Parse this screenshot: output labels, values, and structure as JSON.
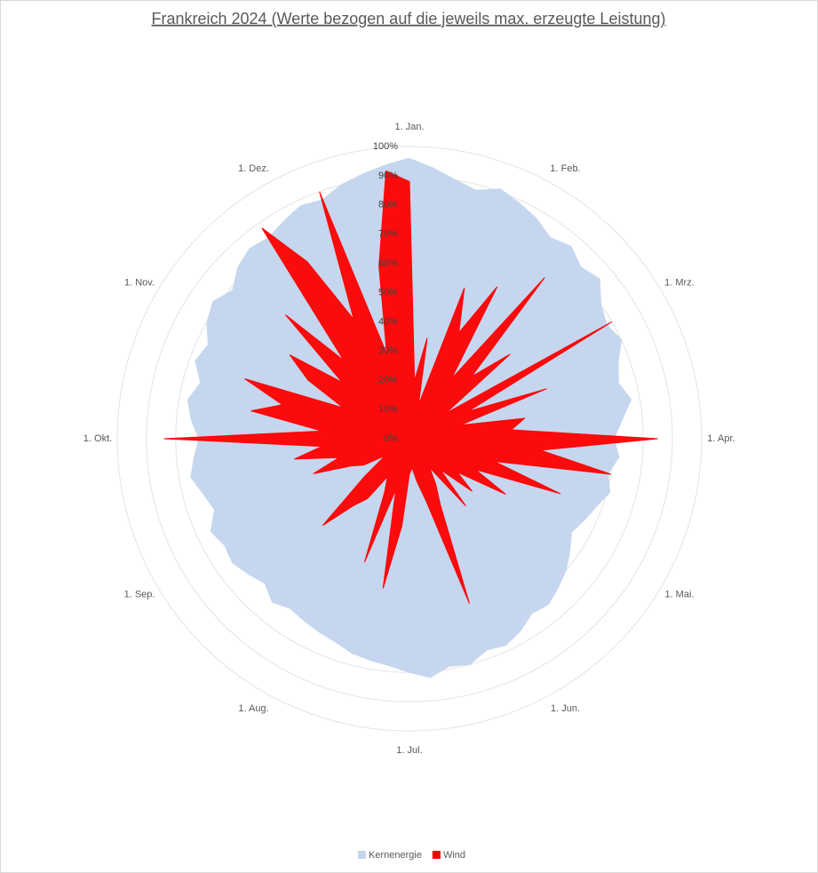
{
  "chart_data": {
    "type": "radar",
    "title": "Frankreich 2024 (Werte bezogen auf die jeweils max. erzeugte Leistung)",
    "categories": [
      "1. Jan.",
      null,
      null,
      null,
      null,
      null,
      "1. Feb.",
      null,
      null,
      null,
      null,
      null,
      "1. Mrz.",
      null,
      null,
      null,
      null,
      null,
      "1. Apr.",
      null,
      null,
      null,
      null,
      null,
      "1. Mai.",
      null,
      null,
      null,
      null,
      null,
      "1. Jun.",
      null,
      null,
      null,
      null,
      null,
      "1. Jul.",
      null,
      null,
      null,
      null,
      null,
      "1. Aug.",
      null,
      null,
      null,
      null,
      null,
      "1. Sep.",
      null,
      null,
      null,
      null,
      null,
      "1. Okt.",
      null,
      null,
      null,
      null,
      null,
      "1. Nov.",
      null,
      null,
      null,
      null,
      null,
      "1. Dez.",
      null,
      null,
      null,
      null,
      null
    ],
    "series": [
      {
        "name": "Kernenergie",
        "color": "#c5d6ee",
        "values": [
          96,
          93,
          90,
          88,
          91,
          89,
          87,
          84,
          86,
          83,
          85,
          80,
          78,
          80,
          76,
          74,
          77,
          73,
          70,
          72,
          69,
          71,
          68,
          66,
          64,
          67,
          70,
          72,
          74,
          73,
          76,
          78,
          77,
          80,
          79,
          82,
          80,
          78,
          77,
          76,
          74,
          73,
          72,
          71,
          73,
          70,
          72,
          74,
          73,
          75,
          71,
          73,
          76,
          74,
          72,
          75,
          77,
          74,
          78,
          76,
          80,
          82,
          79,
          83,
          85,
          84,
          86,
          88,
          87,
          90,
          92,
          94
        ]
      },
      {
        "name": "Wind",
        "color": "#ff0000",
        "values": [
          88,
          20,
          35,
          12,
          55,
          40,
          60,
          25,
          72,
          30,
          45,
          15,
          80,
          22,
          50,
          18,
          40,
          35,
          85,
          45,
          70,
          30,
          55,
          25,
          38,
          20,
          28,
          15,
          30,
          12,
          18,
          25,
          60,
          22,
          15,
          10,
          12,
          30,
          52,
          18,
          45,
          20,
          15,
          25,
          30,
          42,
          20,
          10,
          18,
          22,
          35,
          25,
          40,
          30,
          84,
          30,
          55,
          45,
          60,
          25,
          40,
          50,
          30,
          60,
          35,
          88,
          70,
          45,
          90,
          30,
          60,
          92
        ]
      }
    ],
    "ylim": [
      0,
      100
    ],
    "yticks": [
      {
        "value": 0,
        "label": "0%"
      },
      {
        "value": 10,
        "label": "10%"
      },
      {
        "value": 20,
        "label": "20%"
      },
      {
        "value": 30,
        "label": "30%"
      },
      {
        "value": 40,
        "label": "40%"
      },
      {
        "value": 50,
        "label": "50%"
      },
      {
        "value": 60,
        "label": "60%"
      },
      {
        "value": 70,
        "label": "70%"
      },
      {
        "value": 80,
        "label": "80%"
      },
      {
        "value": 90,
        "label": "90%"
      },
      {
        "value": 100,
        "label": "100%"
      }
    ],
    "grid": true,
    "legend": "bottom"
  }
}
